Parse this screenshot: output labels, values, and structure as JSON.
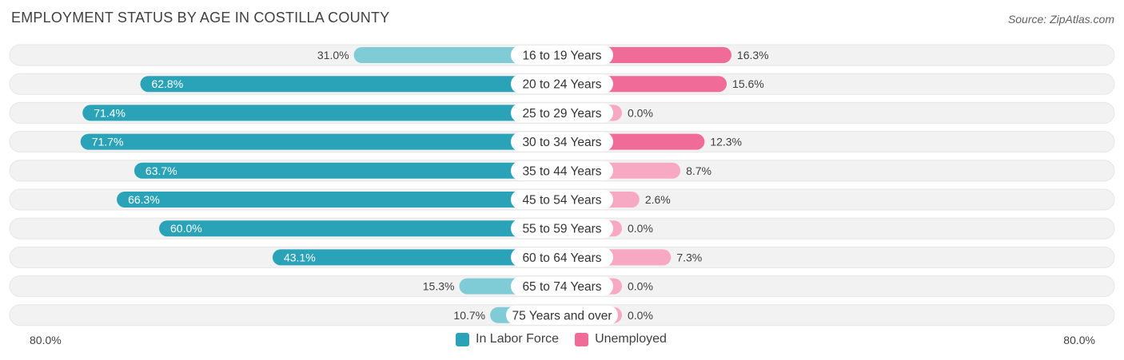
{
  "title": "EMPLOYMENT STATUS BY AGE IN COSTILLA COUNTY",
  "source": "Source: ZipAtlas.com",
  "colors": {
    "labor_dark": "#2aa3b8",
    "labor_light": "#7fcbd6",
    "unemp_dark": "#f06b98",
    "unemp_light": "#f7a9c3",
    "track": "#f2f2f2"
  },
  "axis": {
    "left_label": "80.0%",
    "right_label": "80.0%"
  },
  "legend": [
    {
      "name": "In Labor Force",
      "color": "#2aa3b8"
    },
    {
      "name": "Unemployed",
      "color": "#f06b98"
    }
  ],
  "chart_data": {
    "type": "bar",
    "orientation": "horizontal-diverging",
    "title": "EMPLOYMENT STATUS BY AGE IN COSTILLA COUNTY",
    "categories": [
      "16 to 19 Years",
      "20 to 24 Years",
      "25 to 29 Years",
      "30 to 34 Years",
      "35 to 44 Years",
      "45 to 54 Years",
      "55 to 59 Years",
      "60 to 64 Years",
      "65 to 74 Years",
      "75 Years and over"
    ],
    "series": [
      {
        "name": "In Labor Force",
        "side": "left",
        "values": [
          31.0,
          62.8,
          71.4,
          71.7,
          63.7,
          66.3,
          60.0,
          43.1,
          15.3,
          10.7
        ],
        "labels": [
          "31.0%",
          "62.8%",
          "71.4%",
          "71.7%",
          "63.7%",
          "66.3%",
          "60.0%",
          "43.1%",
          "15.3%",
          "10.7%"
        ]
      },
      {
        "name": "Unemployed",
        "side": "right",
        "values": [
          16.3,
          15.6,
          0.0,
          12.3,
          8.7,
          2.6,
          0.0,
          7.3,
          0.0,
          0.0
        ],
        "labels": [
          "16.3%",
          "15.6%",
          "0.0%",
          "12.3%",
          "8.7%",
          "2.6%",
          "0.0%",
          "7.3%",
          "0.0%",
          "0.0%"
        ]
      }
    ],
    "xlim": [
      -80,
      80
    ],
    "legend_position": "bottom-center"
  }
}
